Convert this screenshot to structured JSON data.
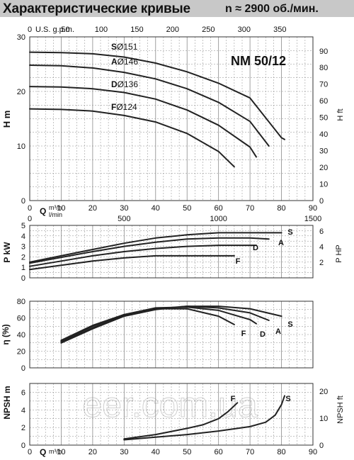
{
  "header": {
    "title": "Характеристические кривые",
    "speed": "n ≈ 2900  об./мин."
  },
  "watermark": "eer.com.ua",
  "colors": {
    "curve": "#222222",
    "grid": "#8a8a8a",
    "title_bg": "#c8c8c8"
  },
  "chart_data": [
    {
      "type": "line",
      "id": "head",
      "model_label": "NM 50/12",
      "ylabel": "H m",
      "ylabel_right": "H ft",
      "xlabel": "Q m³/h",
      "xlabel_secondary": "l/min",
      "xlabel_top": "U.S. g.p.m.",
      "xlim": [
        0,
        90
      ],
      "ylim": [
        0,
        30
      ],
      "xticks": [
        0,
        10,
        20,
        30,
        40,
        50,
        60,
        70,
        80,
        90
      ],
      "yticks": [
        0,
        10,
        20,
        30
      ],
      "top_axis": {
        "unit": "U.S. g.p.m.",
        "ticks": [
          0,
          50,
          100,
          150,
          200,
          250,
          300,
          350
        ]
      },
      "right_axis": {
        "unit": "H ft",
        "ticks": [
          0,
          10,
          20,
          30,
          40,
          50,
          60,
          70,
          80,
          90
        ]
      },
      "lmin_axis": {
        "unit": "l/min",
        "ticks": [
          0,
          500,
          1000,
          1500
        ]
      },
      "series": [
        {
          "name": "S",
          "diameter_label": "Ø151",
          "x": [
            0,
            10,
            20,
            30,
            40,
            50,
            60,
            70,
            80,
            81
          ],
          "y": [
            27.2,
            27.1,
            26.9,
            26.3,
            25.2,
            23.6,
            21.5,
            18.8,
            11.5,
            11.2
          ]
        },
        {
          "name": "A",
          "diameter_label": "Ø146",
          "x": [
            0,
            10,
            20,
            30,
            40,
            50,
            60,
            70,
            76
          ],
          "y": [
            24.8,
            24.7,
            24.3,
            23.5,
            22.3,
            20.5,
            18.0,
            14.5,
            10.0
          ]
        },
        {
          "name": "D",
          "diameter_label": "Ø136",
          "x": [
            0,
            10,
            20,
            30,
            40,
            50,
            60,
            70,
            72
          ],
          "y": [
            20.9,
            20.8,
            20.5,
            19.8,
            18.6,
            16.6,
            13.8,
            9.8,
            8.0
          ]
        },
        {
          "name": "F",
          "diameter_label": "Ø124",
          "x": [
            0,
            10,
            20,
            30,
            40,
            50,
            60,
            65
          ],
          "y": [
            16.8,
            16.7,
            16.4,
            15.6,
            14.4,
            12.3,
            9.0,
            6.2
          ]
        }
      ]
    },
    {
      "type": "line",
      "id": "power",
      "ylabel": "P kW",
      "ylabel_right": "P HP",
      "xlim": [
        0,
        90
      ],
      "ylim": [
        0,
        5
      ],
      "yticks": [
        0,
        1,
        2,
        3,
        4,
        5
      ],
      "right_axis": {
        "unit": "P HP",
        "ticks": [
          2,
          4,
          6
        ]
      },
      "series": [
        {
          "name": "S",
          "x": [
            0,
            10,
            20,
            30,
            40,
            50,
            60,
            70,
            80
          ],
          "y": [
            1.5,
            2.1,
            2.7,
            3.3,
            3.8,
            4.1,
            4.3,
            4.3,
            4.3
          ]
        },
        {
          "name": "A",
          "x": [
            0,
            10,
            20,
            30,
            40,
            50,
            60,
            70,
            76
          ],
          "y": [
            1.4,
            1.95,
            2.5,
            3.0,
            3.4,
            3.7,
            3.8,
            3.8,
            3.7
          ]
        },
        {
          "name": "D",
          "x": [
            0,
            10,
            20,
            30,
            40,
            50,
            60,
            72
          ],
          "y": [
            1.1,
            1.6,
            2.1,
            2.5,
            2.8,
            3.0,
            3.1,
            3.1
          ]
        },
        {
          "name": "F",
          "x": [
            0,
            10,
            20,
            30,
            40,
            50,
            65
          ],
          "y": [
            0.8,
            1.2,
            1.6,
            1.9,
            2.1,
            2.1,
            2.1
          ]
        }
      ]
    },
    {
      "type": "line",
      "id": "efficiency",
      "ylabel": "η (%)",
      "xlim": [
        0,
        90
      ],
      "ylim": [
        0,
        80
      ],
      "yticks": [
        0,
        20,
        40,
        60,
        80
      ],
      "series": [
        {
          "name": "S",
          "x": [
            10,
            20,
            30,
            40,
            50,
            60,
            70,
            80
          ],
          "y": [
            30,
            47,
            62,
            70,
            74,
            74,
            71,
            62
          ]
        },
        {
          "name": "A",
          "x": [
            10,
            20,
            30,
            40,
            50,
            60,
            70,
            76
          ],
          "y": [
            31,
            48,
            63,
            71,
            74,
            72,
            66,
            57
          ]
        },
        {
          "name": "D",
          "x": [
            10,
            20,
            30,
            40,
            50,
            60,
            70,
            72
          ],
          "y": [
            32,
            50,
            64,
            72,
            73,
            69,
            58,
            53
          ]
        },
        {
          "name": "F",
          "x": [
            10,
            20,
            30,
            40,
            50,
            60,
            65
          ],
          "y": [
            33,
            51,
            64,
            71,
            71,
            62,
            52
          ]
        }
      ]
    },
    {
      "type": "line",
      "id": "npsh",
      "ylabel": "NPSH m",
      "ylabel_right": "NPSH ft",
      "xlabel": "Q m³/h",
      "xlim": [
        0,
        90
      ],
      "ylim": [
        0,
        7
      ],
      "yticks": [
        0,
        2,
        4,
        6
      ],
      "xticks": [
        0,
        10,
        20,
        30,
        40,
        50,
        60,
        70,
        80,
        90
      ],
      "right_axis": {
        "unit": "NPSH ft",
        "ticks": [
          0,
          10,
          20
        ]
      },
      "series": [
        {
          "name": "F",
          "x": [
            30,
            40,
            50,
            55,
            60,
            63,
            66
          ],
          "y": [
            0.7,
            1.2,
            1.9,
            2.3,
            3.0,
            3.8,
            4.8
          ]
        },
        {
          "name": "S",
          "x": [
            30,
            40,
            50,
            60,
            70,
            75,
            78,
            80,
            81
          ],
          "y": [
            0.6,
            0.9,
            1.2,
            1.6,
            2.1,
            2.6,
            3.4,
            4.6,
            5.6
          ]
        }
      ]
    }
  ]
}
